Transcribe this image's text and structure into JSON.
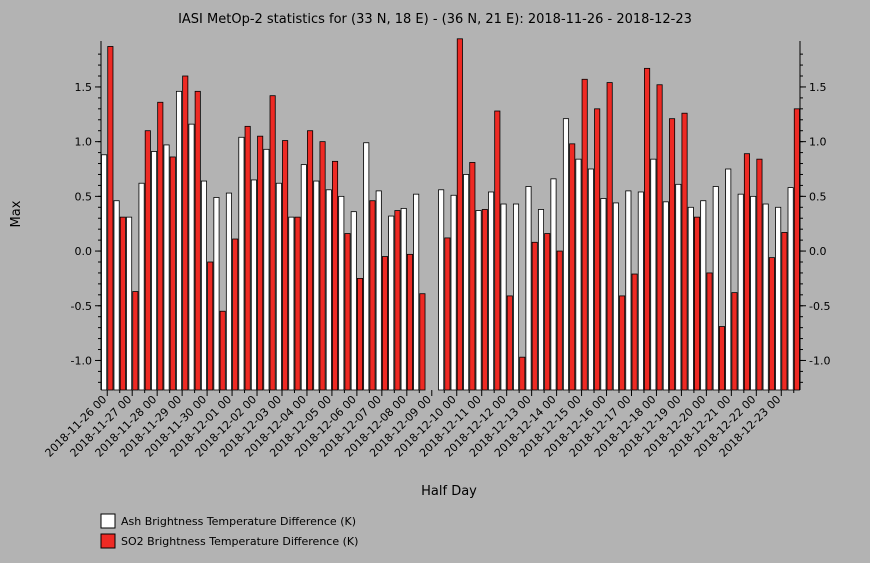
{
  "chart_data": {
    "type": "bar",
    "title": "IASI MetOp-2 statistics for (33 N, 18 E) - (36 N, 21 E): 2018-11-26 - 2018-12-23",
    "xlabel": "Half Day",
    "ylabel": "Max",
    "ylim": [
      -1.27,
      1.92
    ],
    "yticks": [
      -1.0,
      -0.5,
      0.0,
      0.5,
      1.0,
      1.5
    ],
    "ytick_labels": [
      "-1.0",
      "-0.5",
      "0.0",
      "0.5",
      "1.0",
      "1.5"
    ],
    "grid": false,
    "legend_position": "bottom-left",
    "categories": [
      "2018-11-26 00",
      "2018-11-26 12",
      "2018-11-27 00",
      "2018-11-27 12",
      "2018-11-28 00",
      "2018-11-28 12",
      "2018-11-29 00",
      "2018-11-29 12",
      "2018-11-30 00",
      "2018-11-30 12",
      "2018-12-01 00",
      "2018-12-01 12",
      "2018-12-02 00",
      "2018-12-02 12",
      "2018-12-03 00",
      "2018-12-03 12",
      "2018-12-04 00",
      "2018-12-04 12",
      "2018-12-05 00",
      "2018-12-05 12",
      "2018-12-06 00",
      "2018-12-06 12",
      "2018-12-07 00",
      "2018-12-07 12",
      "2018-12-08 00",
      "2018-12-08 12",
      "2018-12-09 00",
      "2018-12-09 12",
      "2018-12-10 00",
      "2018-12-10 12",
      "2018-12-11 00",
      "2018-12-11 12",
      "2018-12-12 00",
      "2018-12-12 12",
      "2018-12-13 00",
      "2018-12-13 12",
      "2018-12-14 00",
      "2018-12-14 12",
      "2018-12-15 00",
      "2018-12-15 12",
      "2018-12-16 00",
      "2018-12-16 12",
      "2018-12-17 00",
      "2018-12-17 12",
      "2018-12-18 00",
      "2018-12-18 12",
      "2018-12-19 00",
      "2018-12-19 12",
      "2018-12-20 00",
      "2018-12-20 12",
      "2018-12-21 00",
      "2018-12-21 12",
      "2018-12-22 00",
      "2018-12-22 12",
      "2018-12-23 00",
      "2018-12-23 12"
    ],
    "tick_labels": [
      "2018-11-26 00",
      "2018-11-27 00",
      "2018-11-28 00",
      "2018-11-29 00",
      "2018-11-30 00",
      "2018-12-01 00",
      "2018-12-02 00",
      "2018-12-03 00",
      "2018-12-04 00",
      "2018-12-05 00",
      "2018-12-06 00",
      "2018-12-07 00",
      "2018-12-08 00",
      "2018-12-09 00",
      "2018-12-10 00",
      "2018-12-11 00",
      "2018-12-12 00",
      "2018-12-13 00",
      "2018-12-14 00",
      "2018-12-15 00",
      "2018-12-16 00",
      "2018-12-17 00",
      "2018-12-18 00",
      "2018-12-19 00",
      "2018-12-20 00",
      "2018-12-21 00",
      "2018-12-22 00",
      "2018-12-23 00"
    ],
    "series": [
      {
        "name": "Ash Brightness Temperature Difference (K)",
        "color": "#ffffff",
        "values": [
          0.88,
          0.46,
          0.31,
          0.62,
          0.91,
          0.97,
          1.46,
          1.16,
          0.64,
          0.49,
          0.53,
          1.04,
          0.65,
          0.93,
          0.62,
          0.31,
          0.79,
          0.64,
          0.56,
          0.5,
          0.36,
          0.99,
          0.55,
          0.32,
          0.39,
          0.52,
          null,
          0.56,
          0.51,
          0.7,
          0.37,
          0.54,
          0.43,
          0.43,
          0.59,
          0.38,
          0.66,
          1.21,
          0.84,
          0.75,
          0.48,
          0.44,
          0.55,
          0.54,
          0.84,
          0.45,
          0.61,
          0.4,
          0.46,
          0.59,
          0.75,
          0.52,
          0.5,
          0.43,
          0.4,
          0.58
        ]
      },
      {
        "name": "SO2 Brightness Temperature Difference (K)",
        "color": "#ee2a24",
        "values": [
          1.87,
          0.31,
          -0.37,
          1.1,
          1.36,
          0.86,
          1.6,
          1.46,
          -0.1,
          -0.55,
          0.11,
          1.14,
          1.05,
          1.42,
          1.01,
          0.31,
          1.1,
          1.0,
          0.82,
          0.16,
          -0.25,
          0.46,
          -0.05,
          0.37,
          -0.03,
          -0.39,
          null,
          0.12,
          1.94,
          0.81,
          0.38,
          1.28,
          -0.41,
          -0.97,
          0.08,
          0.16,
          0.0,
          0.98,
          1.57,
          1.3,
          1.54,
          -0.41,
          -0.21,
          1.67,
          1.52,
          1.21,
          1.26,
          0.31,
          -0.2,
          -0.69,
          -0.38,
          0.89,
          0.84,
          -0.06,
          0.17,
          1.3
        ]
      }
    ]
  },
  "legend": {
    "items": [
      {
        "label": "Ash Brightness Temperature Difference (K)",
        "color": "#ffffff"
      },
      {
        "label": "SO2 Brightness Temperature Difference (K)",
        "color": "#ee2a24"
      }
    ]
  }
}
